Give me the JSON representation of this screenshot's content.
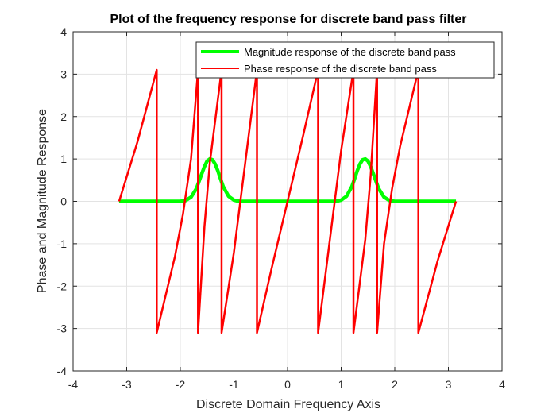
{
  "chart_data": {
    "type": "line",
    "title": "Plot of the frequency response for discrete band pass filter",
    "xlabel": "Discrete Domain Frequency Axis",
    "ylabel": "Phase and Magnitude Response",
    "xlim": [
      -4,
      4
    ],
    "ylim": [
      -4,
      4
    ],
    "xticks": [
      -4,
      -3,
      -2,
      -1,
      0,
      1,
      2,
      3,
      4
    ],
    "yticks": [
      -4,
      -3,
      -2,
      -1,
      0,
      1,
      2,
      3,
      4
    ],
    "grid": true,
    "legend_position": "top-right",
    "series": [
      {
        "name": "Magnitude response of the discrete band pass",
        "color": "#00ff00",
        "x": [
          -3.1416,
          -2.0,
          -1.9,
          -1.8,
          -1.7,
          -1.6,
          -1.55,
          -1.5,
          -1.45,
          -1.4,
          -1.35,
          -1.3,
          -1.25,
          -1.2,
          -1.1,
          -1.0,
          -0.9,
          0.0,
          0.9,
          1.0,
          1.1,
          1.2,
          1.25,
          1.3,
          1.35,
          1.4,
          1.45,
          1.5,
          1.55,
          1.6,
          1.7,
          1.8,
          1.9,
          2.0,
          3.1416
        ],
        "y": [
          0,
          0,
          0.02,
          0.1,
          0.3,
          0.65,
          0.82,
          0.95,
          1.0,
          0.98,
          0.88,
          0.72,
          0.53,
          0.35,
          0.12,
          0.03,
          0,
          0,
          0,
          0.03,
          0.12,
          0.35,
          0.53,
          0.72,
          0.88,
          0.98,
          1.0,
          0.95,
          0.82,
          0.65,
          0.3,
          0.1,
          0.02,
          0,
          0
        ]
      },
      {
        "name": "Phase response of the discrete band pass",
        "color": "#ff0000",
        "x": [
          -3.1416,
          -2.8,
          -2.44,
          -2.44,
          -2.1,
          -1.95,
          -1.8,
          -1.67,
          -1.67,
          -1.55,
          -1.45,
          -1.3,
          -1.23,
          -1.23,
          -1.0,
          -0.8,
          -0.57,
          -0.57,
          -0.3,
          0.0,
          0.3,
          0.57,
          0.57,
          0.8,
          1.0,
          1.23,
          1.23,
          1.3,
          1.45,
          1.55,
          1.67,
          1.67,
          1.8,
          1.95,
          2.1,
          2.44,
          2.44,
          2.8,
          3.1416
        ],
        "y": [
          0,
          1.4,
          3.1,
          -3.1,
          -1.3,
          -0.3,
          1.0,
          3.1,
          -3.1,
          -0.6,
          0.9,
          2.4,
          3.1,
          -3.1,
          -1.2,
          0.8,
          3.1,
          -3.1,
          -1.6,
          0.0,
          1.6,
          3.1,
          -3.1,
          -0.8,
          1.2,
          3.1,
          -3.1,
          -2.4,
          -0.9,
          0.6,
          3.1,
          -3.1,
          -1.0,
          0.3,
          1.3,
          3.1,
          -3.1,
          -1.4,
          0
        ]
      }
    ]
  }
}
